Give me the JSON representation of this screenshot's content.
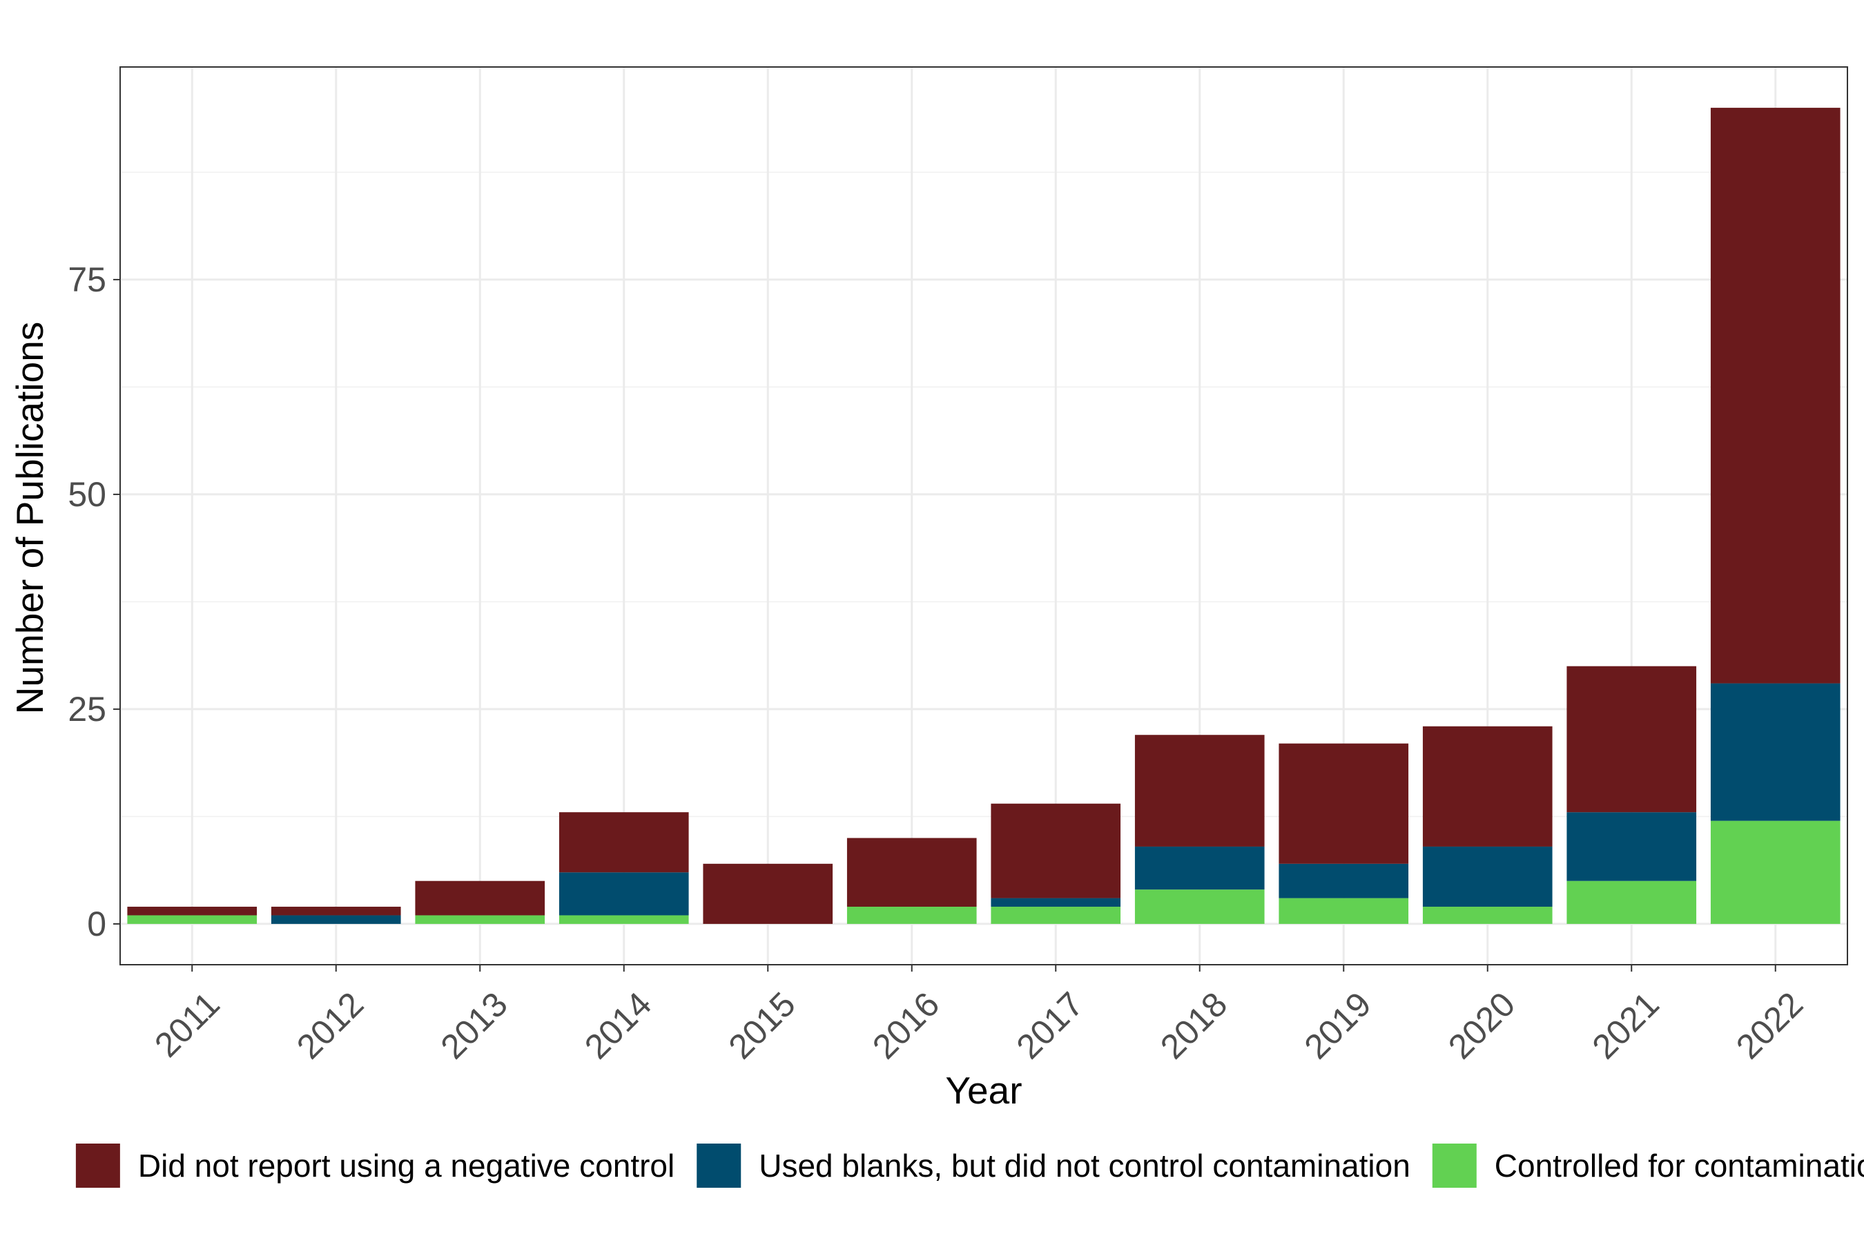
{
  "chart_data": {
    "type": "bar",
    "stacked": true,
    "title": "",
    "xlabel": "Year",
    "ylabel": "Number of Publications",
    "categories": [
      "2011",
      "2012",
      "2013",
      "2014",
      "2015",
      "2016",
      "2017",
      "2018",
      "2019",
      "2020",
      "2021",
      "2022"
    ],
    "ylim": [
      -4.75,
      99.75
    ],
    "yticks": [
      "0",
      "25",
      "50",
      "75"
    ],
    "grid": true,
    "legend": "bottom",
    "series": [
      {
        "name": "Controlled for contamination",
        "color": "#62d152",
        "values": [
          1,
          0,
          1,
          1,
          0,
          2,
          2,
          4,
          3,
          2,
          5,
          12
        ]
      },
      {
        "name": "Used blanks, but did not control contamination",
        "color": "#014c6e",
        "values": [
          0,
          1,
          0,
          5,
          0,
          0,
          1,
          5,
          4,
          7,
          8,
          16
        ]
      },
      {
        "name": "Did not report using a negative control",
        "color": "#6a1a1c",
        "values": [
          1,
          1,
          4,
          7,
          7,
          8,
          11,
          13,
          14,
          14,
          17,
          67
        ]
      }
    ],
    "legend_order": [
      2,
      1,
      0
    ]
  }
}
